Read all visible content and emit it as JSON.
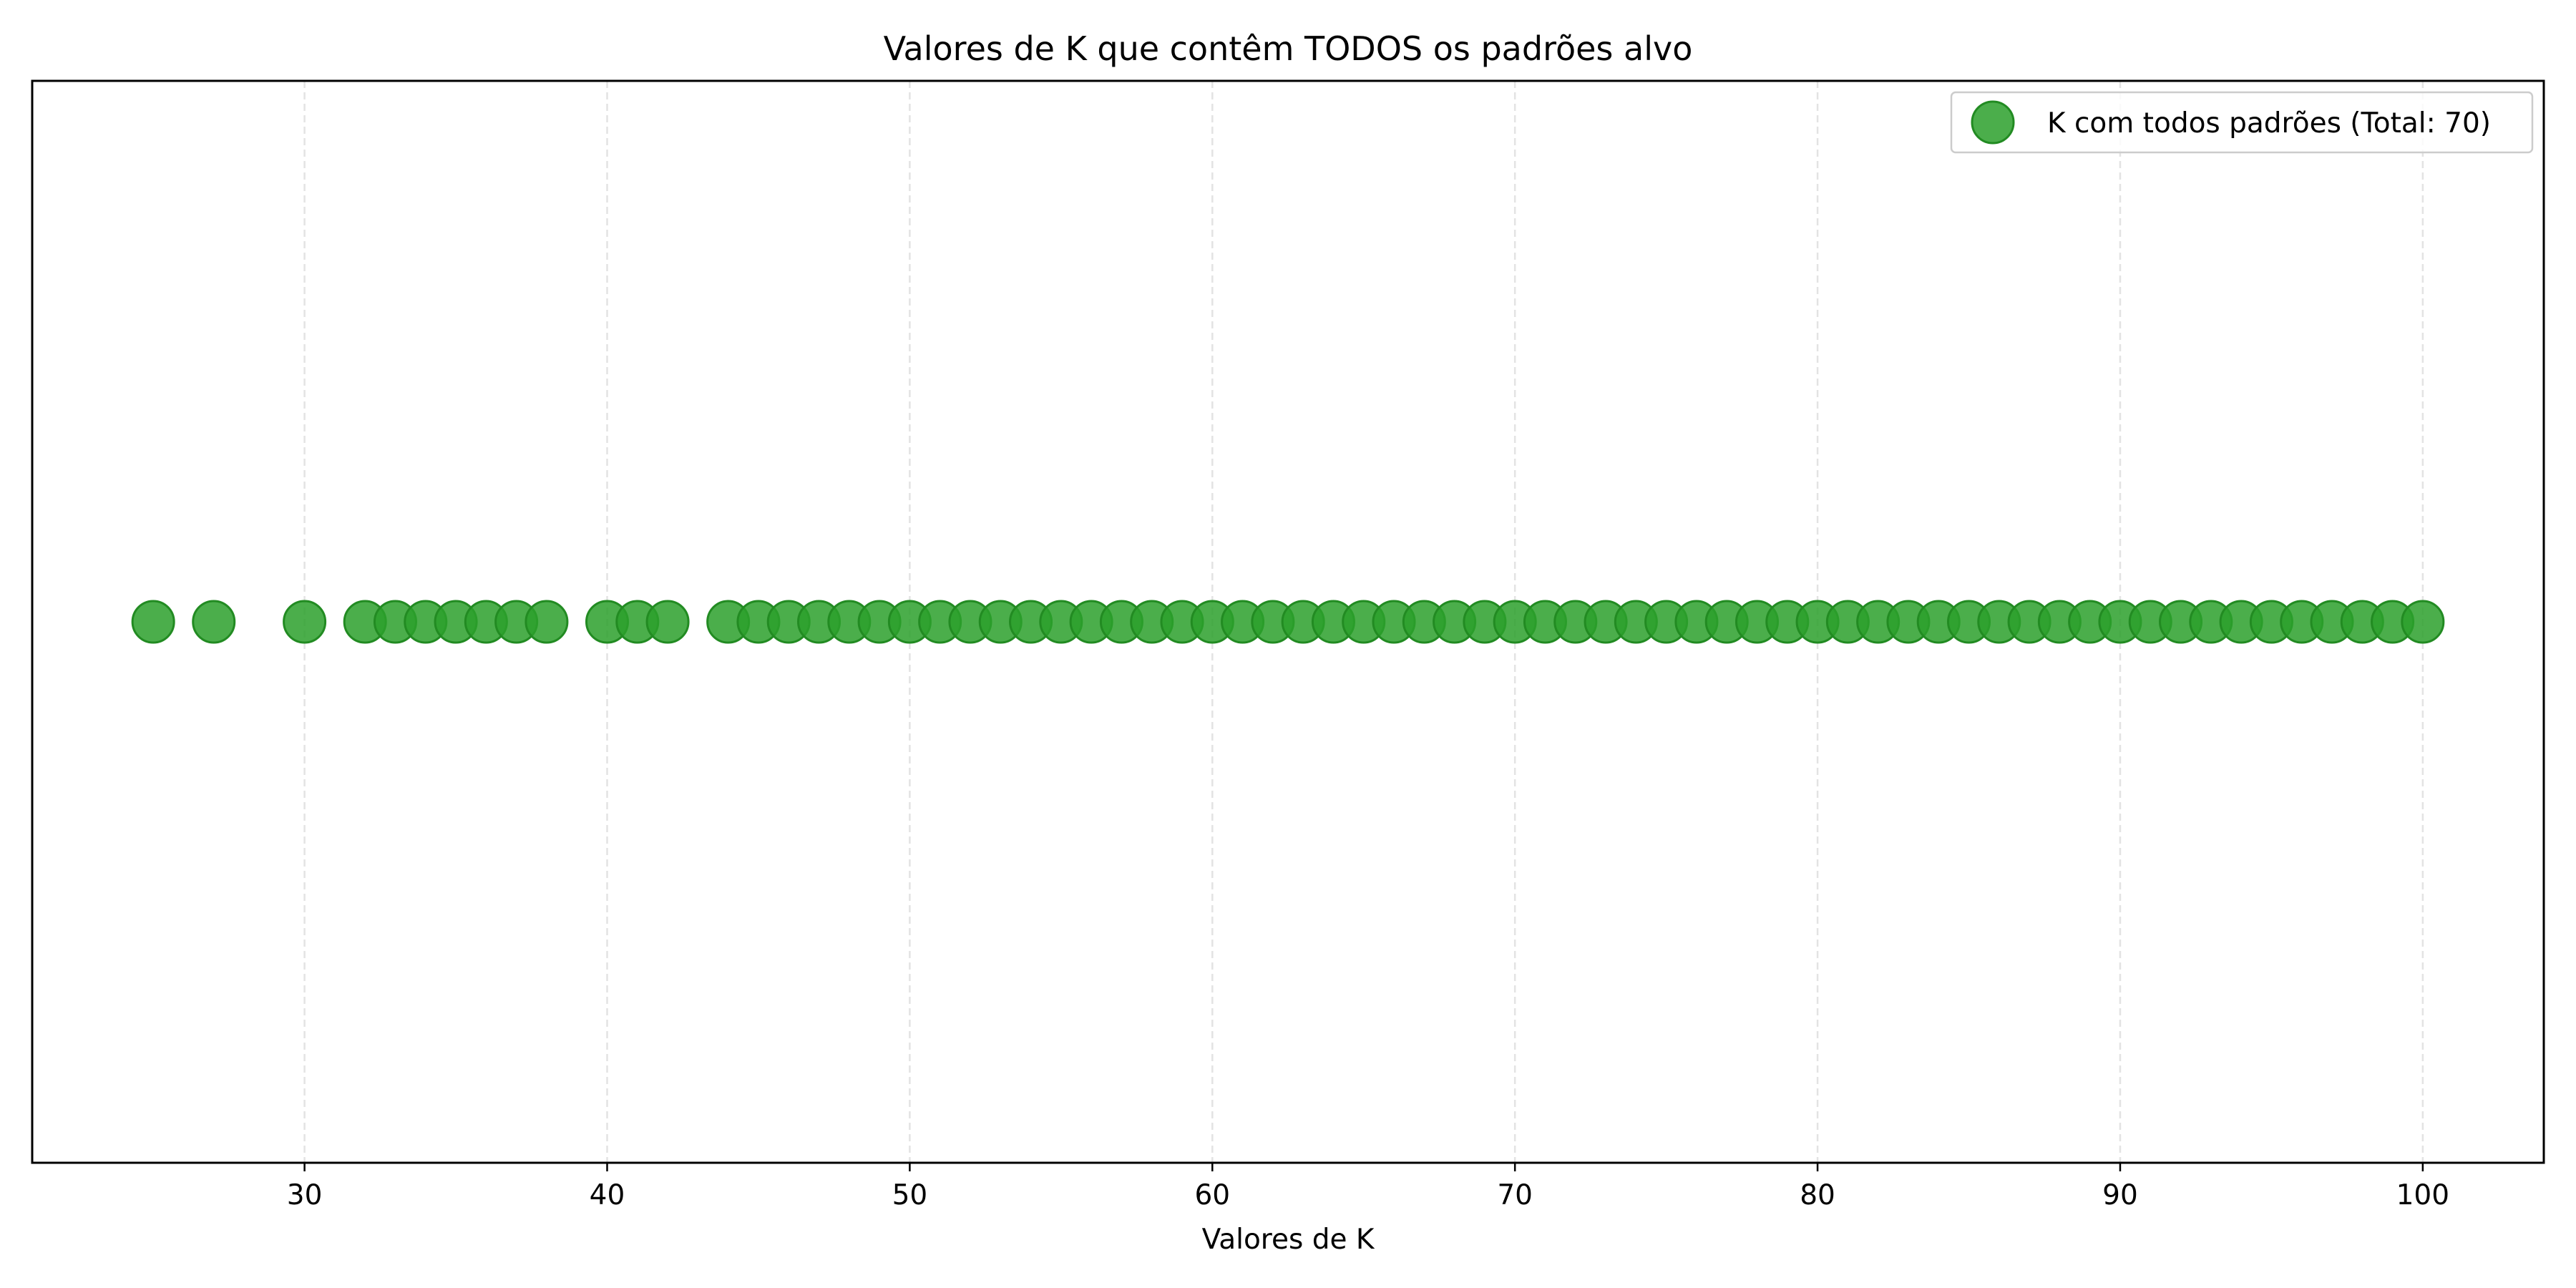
{
  "chart_data": {
    "type": "scatter",
    "title": "Valores de K que contêm TODOS os padrões alvo",
    "xlabel": "Valores de K",
    "ylabel": "",
    "xlim": [
      21,
      104
    ],
    "x_ticks": [
      30,
      40,
      50,
      60,
      70,
      80,
      90,
      100
    ],
    "y_ticks_visible": false,
    "grid": "vertical dashed",
    "legend_position": "top-right",
    "series": [
      {
        "name": "K com todos padrões (Total: 70)",
        "color": "#2ca02c",
        "x": [
          25,
          27,
          30,
          32,
          33,
          34,
          35,
          36,
          37,
          38,
          40,
          41,
          42,
          44,
          45,
          46,
          47,
          48,
          49,
          50,
          51,
          52,
          53,
          54,
          55,
          56,
          57,
          58,
          59,
          60,
          61,
          62,
          63,
          64,
          65,
          66,
          67,
          68,
          69,
          70,
          71,
          72,
          73,
          74,
          75,
          76,
          77,
          78,
          79,
          80,
          81,
          82,
          83,
          84,
          85,
          86,
          87,
          88,
          89,
          90,
          91,
          92,
          93,
          94,
          95,
          96,
          97,
          98,
          99,
          100
        ],
        "y": [
          1,
          1,
          1,
          1,
          1,
          1,
          1,
          1,
          1,
          1,
          1,
          1,
          1,
          1,
          1,
          1,
          1,
          1,
          1,
          1,
          1,
          1,
          1,
          1,
          1,
          1,
          1,
          1,
          1,
          1,
          1,
          1,
          1,
          1,
          1,
          1,
          1,
          1,
          1,
          1,
          1,
          1,
          1,
          1,
          1,
          1,
          1,
          1,
          1,
          1,
          1,
          1,
          1,
          1,
          1,
          1,
          1,
          1,
          1,
          1,
          1,
          1,
          1,
          1,
          1,
          1,
          1,
          1,
          1,
          1
        ]
      }
    ]
  }
}
